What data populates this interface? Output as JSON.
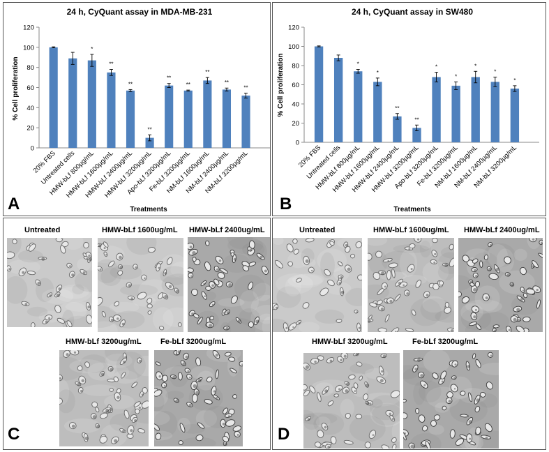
{
  "chart_data": [
    {
      "panel_letter": "A",
      "type": "bar",
      "title": "24 h, CyQuant assay in MDA-MB-231",
      "xlabel": "Treatments",
      "ylabel": "% Cell proliferation",
      "ylim": [
        0,
        120
      ],
      "yticks": [
        0,
        20,
        40,
        60,
        80,
        100,
        120
      ],
      "categories": [
        "20% FBS",
        "Untreated  cells",
        "HMW-bLf 800µg/mL",
        "HMW-bLf 1600µg/mL",
        "HMW-bLf 2400µg/mL",
        "HMW-bLf 3200µg/mL",
        "Apo-bLf 3200µg/mL",
        "Fe-bLf 3200µg/mL",
        "NM-bLf 1600µg/mL",
        "NM-bLf 2400µg/mL",
        "NM-bLf 3200µg/mL"
      ],
      "values": [
        100,
        89,
        87,
        75,
        57,
        10,
        62,
        57,
        67,
        58,
        52
      ],
      "errors": [
        0.5,
        6,
        6,
        3,
        1,
        3,
        2,
        0.5,
        3,
        1.5,
        2.5
      ],
      "significance": [
        "",
        "",
        "*",
        "**",
        "**",
        "**",
        "**",
        "**",
        "**",
        "**",
        "**"
      ],
      "bar_color": "#4f81bd"
    },
    {
      "panel_letter": "B",
      "type": "bar",
      "title": "24 h, CyQuant assay in SW480",
      "xlabel": "Treatments",
      "ylabel": "% Cell proliferation",
      "ylim": [
        0,
        120
      ],
      "yticks": [
        0,
        20,
        40,
        60,
        80,
        100,
        120
      ],
      "categories": [
        "20% FBS",
        "Untreated  cells",
        "HMW-bLf 800µg/mL",
        "HMW-bLf 1600µg/mL",
        "HMW-bLf 2400µg/mL",
        "HMW-bLf 3200µg/mL",
        "Apo-bLf 3200µg/mL",
        "Fe-bLf 3200µg/mL",
        "NM-bLf 1600µg/mL",
        "NM-bLf 2400µg/mL",
        "NM-bLf 3200µg/mL"
      ],
      "values": [
        100,
        88,
        74,
        63,
        27,
        15,
        68,
        59,
        68,
        63,
        56
      ],
      "errors": [
        0.5,
        3,
        2,
        4,
        3,
        3,
        5,
        4,
        6,
        5,
        3
      ],
      "significance": [
        "",
        "",
        "*",
        "*",
        "**",
        "**",
        "*",
        "*",
        "*",
        "*",
        "*"
      ],
      "bar_color": "#4f81bd"
    }
  ],
  "image_panels": [
    {
      "panel_letter": "C",
      "images": [
        {
          "label": "Untreated"
        },
        {
          "label": "HMW-bLf 1600ug/mL"
        },
        {
          "label": "HMW-bLf 2400ug/mL"
        },
        {
          "label": "HMW-bLf 3200ug/mL"
        },
        {
          "label": "Fe-bLf 3200ug/mL"
        }
      ]
    },
    {
      "panel_letter": "D",
      "images": [
        {
          "label": "Untreated"
        },
        {
          "label": "HMW-bLf 1600ug/mL"
        },
        {
          "label": "HMW-bLf 2400ug/mL"
        },
        {
          "label": "HMW-bLf 3200ug/mL"
        },
        {
          "label": "Fe-bLf 3200ug/mL"
        }
      ]
    }
  ]
}
